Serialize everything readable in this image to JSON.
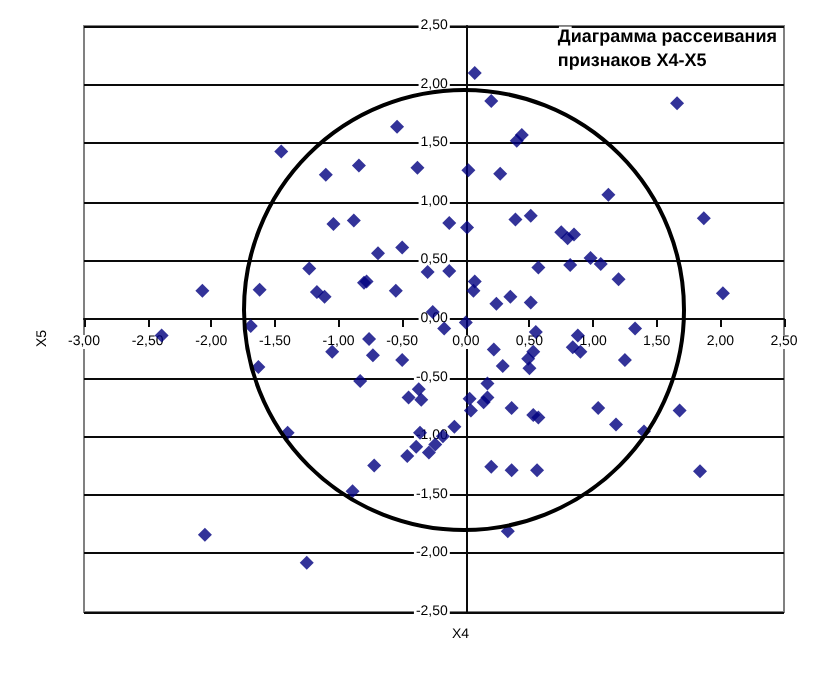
{
  "chart_data": {
    "type": "scatter",
    "title": "Диаграмма рассеивания признаков X4-X5",
    "xlabel": "X4",
    "ylabel": "X5",
    "xlim": [
      -3,
      2.5
    ],
    "ylim": [
      -2.5,
      2.5
    ],
    "xticks": [
      {
        "value": -3,
        "label": "-3,00"
      },
      {
        "value": -2.5,
        "label": "-2,50"
      },
      {
        "value": -2,
        "label": "-2,00"
      },
      {
        "value": -1.5,
        "label": "-1,50"
      },
      {
        "value": -1,
        "label": "-1,00"
      },
      {
        "value": -0.5,
        "label": "-0,50"
      },
      {
        "value": 0,
        "label": "0,00"
      },
      {
        "value": 0.5,
        "label": "0,50"
      },
      {
        "value": 1,
        "label": "1,00"
      },
      {
        "value": 1.5,
        "label": "1,50"
      },
      {
        "value": 2,
        "label": "2,00"
      },
      {
        "value": 2.5,
        "label": "2,50"
      }
    ],
    "yticks": [
      {
        "value": -2.5,
        "label": "-2,50"
      },
      {
        "value": -2,
        "label": "-2,00"
      },
      {
        "value": -1.5,
        "label": "-1,50"
      },
      {
        "value": -1,
        "label": "-1,00"
      },
      {
        "value": -0.5,
        "label": "-0,50"
      },
      {
        "value": 0,
        "label": "0,00"
      },
      {
        "value": 0.5,
        "label": "0,50"
      },
      {
        "value": 1,
        "label": "1,00"
      },
      {
        "value": 1.5,
        "label": "1,50"
      },
      {
        "value": 2,
        "label": "2,00"
      },
      {
        "value": 2.5,
        "label": "2,50"
      }
    ],
    "grid": "y",
    "marker": "diamond",
    "series": [
      {
        "color": "#000080",
        "x": [
          -1.45,
          -1.1,
          -0.84,
          -0.54,
          -0.38,
          -1.04,
          -0.88,
          -0.69,
          -0.5,
          -1.23,
          -0.78,
          -0.8,
          -0.55,
          -0.3,
          -2.07,
          -1.62,
          -1.17,
          -1.11,
          -0.26,
          0.07,
          0.2,
          0.4,
          0.44,
          0.27,
          0.02,
          1.12,
          1.66,
          1.87,
          0.39,
          0.51,
          -0.13,
          0.01,
          0.75,
          0.8,
          0.85,
          0.98,
          1.06,
          1.2,
          0.82,
          0.57,
          -0.13,
          0.07,
          0.06,
          0.24,
          0.35,
          0.51,
          2.02,
          -2.39,
          -1.69,
          -1.63,
          -1.05,
          -0.76,
          -0.73,
          -0.5,
          -0.83,
          -0.45,
          -0.37,
          -0.35,
          -1.4,
          -0.36,
          -0.46,
          -0.39,
          -0.29,
          -0.24,
          -0.72,
          -0.89,
          -2.05,
          -1.25,
          -0.17,
          0.0,
          0.22,
          0.29,
          0.55,
          0.53,
          0.49,
          0.5,
          0.88,
          0.84,
          0.9,
          1.33,
          1.25,
          0.17,
          0.03,
          0.04,
          0.14,
          0.17,
          0.36,
          0.53,
          0.57,
          1.04,
          1.18,
          1.4,
          1.68,
          -0.18,
          -0.09,
          0.2,
          0.36,
          0.56,
          1.84,
          0.33
        ],
        "values": [
          1.43,
          1.23,
          1.31,
          1.64,
          1.29,
          0.81,
          0.84,
          0.56,
          0.61,
          0.43,
          0.32,
          0.31,
          0.24,
          0.4,
          0.24,
          0.25,
          0.23,
          0.19,
          0.06,
          2.1,
          1.86,
          1.52,
          1.57,
          1.24,
          1.27,
          1.06,
          1.84,
          0.86,
          0.85,
          0.88,
          0.82,
          0.78,
          0.74,
          0.69,
          0.72,
          0.52,
          0.47,
          0.34,
          0.46,
          0.44,
          0.41,
          0.32,
          0.24,
          0.13,
          0.19,
          0.14,
          0.22,
          -0.14,
          -0.06,
          -0.41,
          -0.28,
          -0.17,
          -0.31,
          -0.35,
          -0.53,
          -0.67,
          -0.6,
          -0.69,
          -0.97,
          -0.97,
          -1.17,
          -1.09,
          -1.14,
          -1.07,
          -1.25,
          -1.47,
          -1.84,
          -2.08,
          -0.08,
          -0.03,
          -0.26,
          -0.4,
          -0.11,
          -0.28,
          -0.34,
          -0.42,
          -0.14,
          -0.24,
          -0.28,
          -0.08,
          -0.35,
          -0.55,
          -0.68,
          -0.78,
          -0.71,
          -0.67,
          -0.76,
          -0.82,
          -0.84,
          -0.76,
          -0.9,
          -0.96,
          -0.78,
          -1.0,
          -0.92,
          -1.26,
          -1.29,
          -1.29,
          -1.3,
          -1.81
        ]
      }
    ]
  }
}
